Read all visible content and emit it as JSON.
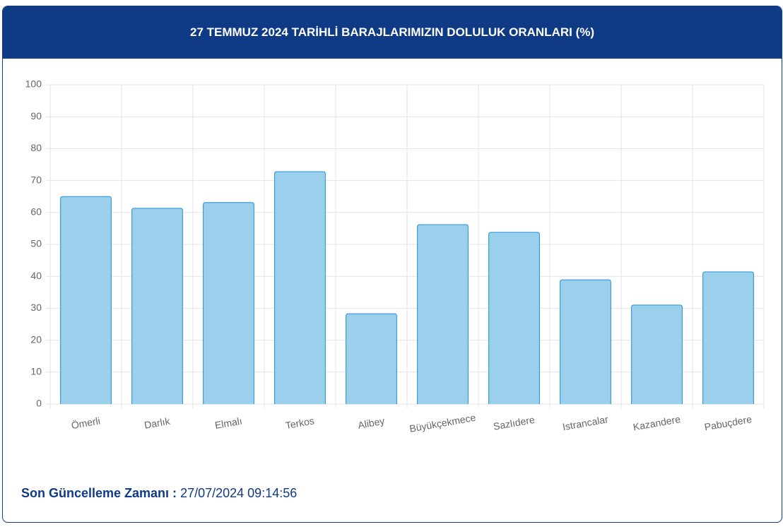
{
  "chart_data": {
    "type": "bar",
    "title": "27 TEMMUZ 2024 TARİHLİ BARAJLARIMIZIN DOLULUK ORANLARI (%)",
    "categories": [
      "Ömerli",
      "Darlık",
      "Elmalı",
      "Terkos",
      "Alibey",
      "Büyükçekmece",
      "Sazlıdere",
      "Istrancalar",
      "Kazandere",
      "Pabuçdere"
    ],
    "values": [
      65.0,
      61.3,
      63.1,
      72.8,
      28.3,
      56.2,
      53.8,
      38.9,
      31.0,
      41.4
    ],
    "color": "#9bd0ec",
    "border_color": "#1e8fd5",
    "ylim": [
      0,
      100
    ],
    "yticks": [
      0,
      10,
      20,
      30,
      40,
      50,
      60,
      70,
      80,
      90,
      100
    ],
    "grid": true
  },
  "footer": {
    "label": "Son Güncelleme Zamanı :",
    "value": "27/07/2024 09:14:56"
  }
}
